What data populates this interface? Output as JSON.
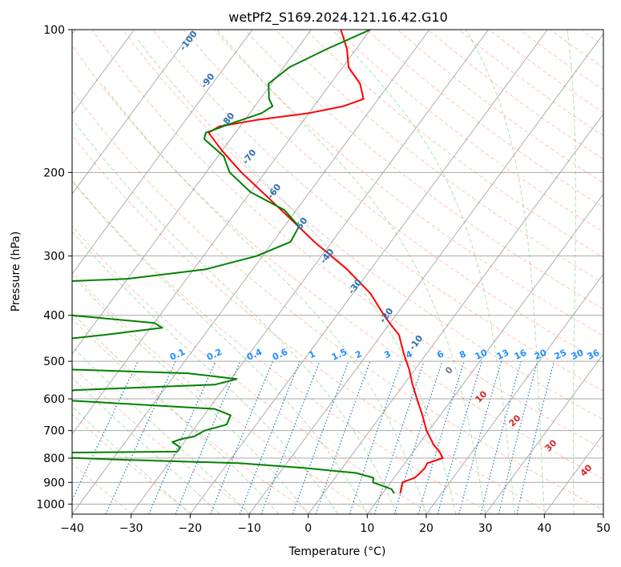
{
  "colors": {
    "temperature": "#ff0000",
    "dewpoint": "#008000",
    "dry_adiabat": "#ff7f50",
    "moist_adiabat": "#2ca02c",
    "mixing_ratio": "#1f77b4",
    "isotherm": "#808080",
    "isobar": "#a9a9a9"
  },
  "chart_data": {
    "type": "line",
    "subtype": "skew-T log-P",
    "title": "wetPf2_S169.2024.121.16.42.G10",
    "xlabel": "Temperature (°C)",
    "ylabel": "Pressure (hPa)",
    "xlim": [
      -40,
      50
    ],
    "ylim": [
      1050,
      100
    ],
    "y_scale": "log",
    "x_ticks": [
      -40,
      -30,
      -20,
      -10,
      0,
      10,
      20,
      30,
      40,
      50
    ],
    "y_ticks": [
      100,
      200,
      300,
      400,
      500,
      600,
      700,
      800,
      900,
      1000
    ],
    "grid": true,
    "series": [
      {
        "name": "temperature",
        "points": [
          {
            "p": 950,
            "t": 13.0
          },
          {
            "p": 925,
            "t": 12.5
          },
          {
            "p": 900,
            "t": 12.0
          },
          {
            "p": 880,
            "t": 13.5
          },
          {
            "p": 860,
            "t": 13.8
          },
          {
            "p": 840,
            "t": 14.0
          },
          {
            "p": 820,
            "t": 13.8
          },
          {
            "p": 800,
            "t": 15.8
          },
          {
            "p": 780,
            "t": 14.7
          },
          {
            "p": 750,
            "t": 12.6
          },
          {
            "p": 700,
            "t": 9.6
          },
          {
            "p": 650,
            "t": 7.0
          },
          {
            "p": 600,
            "t": 4.0
          },
          {
            "p": 560,
            "t": 1.5
          },
          {
            "p": 520,
            "t": -1.0
          },
          {
            "p": 480,
            "t": -4.0
          },
          {
            "p": 440,
            "t": -7.0
          },
          {
            "p": 420,
            "t": -9.5
          },
          {
            "p": 400,
            "t": -12.0
          },
          {
            "p": 360,
            "t": -17.0
          },
          {
            "p": 320,
            "t": -24.0
          },
          {
            "p": 280,
            "t": -33.0
          },
          {
            "p": 250,
            "t": -40.0
          },
          {
            "p": 220,
            "t": -48.0
          },
          {
            "p": 200,
            "t": -54.0
          },
          {
            "p": 180,
            "t": -60.0
          },
          {
            "p": 165,
            "t": -64.5
          },
          {
            "p": 160,
            "t": -63.5
          },
          {
            "p": 155,
            "t": -58.0
          },
          {
            "p": 150,
            "t": -50.0
          },
          {
            "p": 145,
            "t": -45.0
          },
          {
            "p": 140,
            "t": -42.5
          },
          {
            "p": 130,
            "t": -45.0
          },
          {
            "p": 120,
            "t": -49.0
          },
          {
            "p": 110,
            "t": -51.5
          },
          {
            "p": 100,
            "t": -55.0
          }
        ]
      },
      {
        "name": "dewpoint",
        "points": [
          {
            "p": 950,
            "t": 12.0
          },
          {
            "p": 930,
            "t": 11.0
          },
          {
            "p": 900,
            "t": 7.0
          },
          {
            "p": 880,
            "t": 6.5
          },
          {
            "p": 860,
            "t": 3.0
          },
          {
            "p": 840,
            "t": -6.0
          },
          {
            "p": 820,
            "t": -18.0
          },
          {
            "p": 805,
            "t": -40.0
          },
          {
            "p": 795,
            "t": -52.0
          },
          {
            "p": 790,
            "t": -55.0
          },
          {
            "p": 785,
            "t": -58.0
          },
          {
            "p": 780,
            "t": -54.0
          },
          {
            "p": 775,
            "t": -30.0
          },
          {
            "p": 760,
            "t": -30.0
          },
          {
            "p": 740,
            "t": -32.0
          },
          {
            "p": 730,
            "t": -31.0
          },
          {
            "p": 720,
            "t": -29.0
          },
          {
            "p": 700,
            "t": -28.0
          },
          {
            "p": 680,
            "t": -25.0
          },
          {
            "p": 650,
            "t": -25.5
          },
          {
            "p": 630,
            "t": -29.0
          },
          {
            "p": 600,
            "t": -60.0
          },
          {
            "p": 590,
            "t": -60.0
          },
          {
            "p": 575,
            "t": -55.0
          },
          {
            "p": 560,
            "t": -32.0
          },
          {
            "p": 545,
            "t": -29.0
          },
          {
            "p": 530,
            "t": -38.0
          },
          {
            "p": 515,
            "t": -70.0
          },
          {
            "p": 460,
            "t": -70.0
          },
          {
            "p": 440,
            "t": -57.0
          },
          {
            "p": 425,
            "t": -48.0
          },
          {
            "p": 415,
            "t": -50.0
          },
          {
            "p": 400,
            "t": -65.0
          },
          {
            "p": 340,
            "t": -72.0
          },
          {
            "p": 335,
            "t": -60.0
          },
          {
            "p": 320,
            "t": -48.0
          },
          {
            "p": 300,
            "t": -41.0
          },
          {
            "p": 280,
            "t": -37.0
          },
          {
            "p": 260,
            "t": -37.5
          },
          {
            "p": 240,
            "t": -42.0
          },
          {
            "p": 220,
            "t": -50.0
          },
          {
            "p": 200,
            "t": -56.0
          },
          {
            "p": 185,
            "t": -59.0
          },
          {
            "p": 170,
            "t": -64.5
          },
          {
            "p": 165,
            "t": -65.0
          },
          {
            "p": 158,
            "t": -62.0
          },
          {
            "p": 150,
            "t": -58.0
          },
          {
            "p": 145,
            "t": -57.0
          },
          {
            "p": 140,
            "t": -58.5
          },
          {
            "p": 130,
            "t": -60.5
          },
          {
            "p": 120,
            "t": -59.0
          },
          {
            "p": 110,
            "t": -55.0
          },
          {
            "p": 100,
            "t": -50.0
          }
        ]
      }
    ],
    "dry_adiabat_labels": [
      "-100",
      "-90",
      "-80",
      "-70",
      "-60",
      "-50",
      "-40",
      "-30",
      "-20",
      "-10"
    ],
    "moist_adiabat_labels": [
      "0",
      "10",
      "20",
      "30",
      "40"
    ],
    "mixing_ratio_labels": [
      "0.1",
      "0.2",
      "0.4",
      "0.6",
      "1",
      "1.5",
      "2",
      "3",
      "4",
      "6",
      "8",
      "10",
      "13",
      "16",
      "20",
      "25",
      "30",
      "36"
    ]
  }
}
